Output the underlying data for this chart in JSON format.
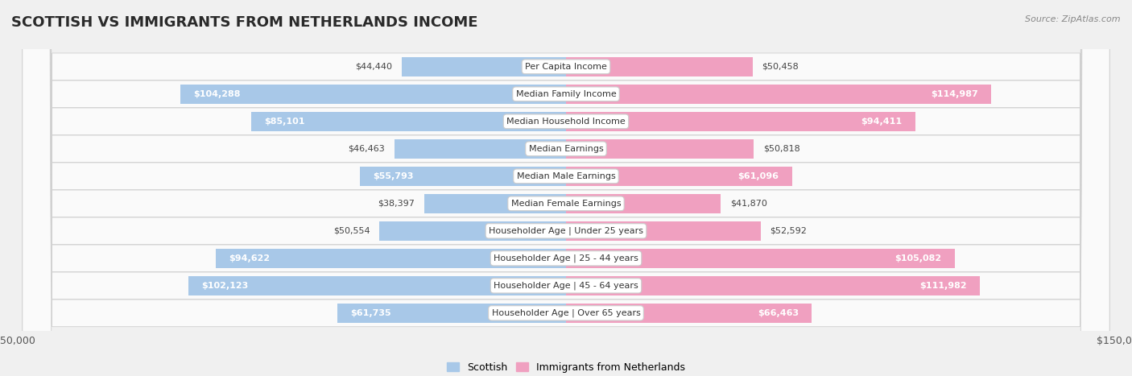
{
  "title": "SCOTTISH VS IMMIGRANTS FROM NETHERLANDS INCOME",
  "source": "Source: ZipAtlas.com",
  "categories": [
    "Per Capita Income",
    "Median Family Income",
    "Median Household Income",
    "Median Earnings",
    "Median Male Earnings",
    "Median Female Earnings",
    "Householder Age | Under 25 years",
    "Householder Age | 25 - 44 years",
    "Householder Age | 45 - 64 years",
    "Householder Age | Over 65 years"
  ],
  "scottish_values": [
    44440,
    104288,
    85101,
    46463,
    55793,
    38397,
    50554,
    94622,
    102123,
    61735
  ],
  "netherlands_values": [
    50458,
    114987,
    94411,
    50818,
    61096,
    41870,
    52592,
    105082,
    111982,
    66463
  ],
  "scottish_labels": [
    "$44,440",
    "$104,288",
    "$85,101",
    "$46,463",
    "$55,793",
    "$38,397",
    "$50,554",
    "$94,622",
    "$102,123",
    "$61,735"
  ],
  "netherlands_labels": [
    "$50,458",
    "$114,987",
    "$94,411",
    "$50,818",
    "$61,096",
    "$41,870",
    "$52,592",
    "$105,082",
    "$111,982",
    "$66,463"
  ],
  "scottish_color": "#a8c8e8",
  "netherlands_color": "#f0a0c0",
  "bar_height": 0.72,
  "xlim": 150000,
  "background_color": "#f0f0f0",
  "row_bg_color": "#fafafa",
  "title_fontsize": 13,
  "value_fontsize": 8,
  "category_fontsize": 8,
  "legend_fontsize": 9,
  "axis_label_fontsize": 9,
  "inside_threshold": 55000
}
